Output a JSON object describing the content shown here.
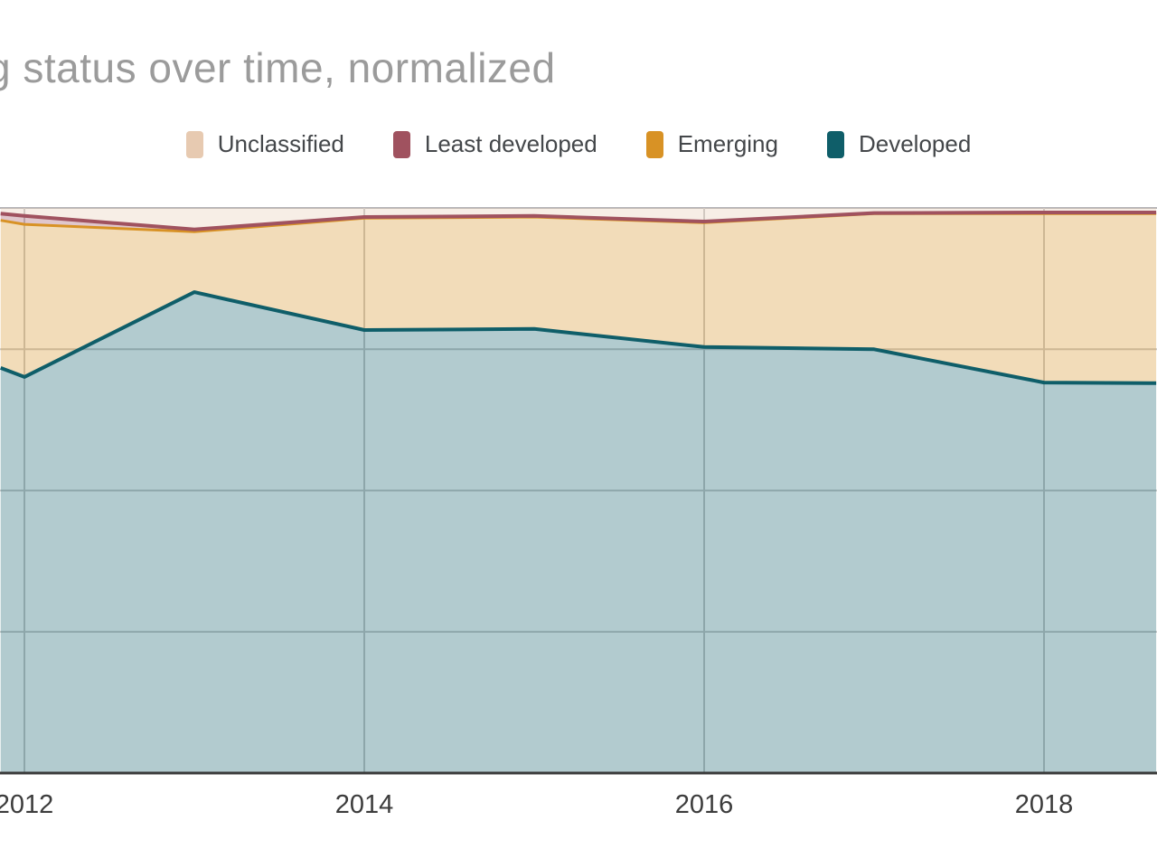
{
  "title": "g status over time, normalized",
  "legend": {
    "items": [
      {
        "label": "Unclassified",
        "color": "#e7cab1"
      },
      {
        "label": "Least developed",
        "color": "#a0525f"
      },
      {
        "label": "Emerging",
        "color": "#d89225"
      },
      {
        "label": "Developed",
        "color": "#0f5e69"
      }
    ]
  },
  "x_axis": {
    "tick_labels": [
      "2012",
      "2014",
      "2016",
      "2018"
    ],
    "tick_years": [
      2012,
      2014,
      2016,
      2018
    ]
  },
  "chart_data": {
    "type": "area",
    "stacked": true,
    "normalized": true,
    "title": "g status over time, normalized",
    "x": [
      2011.86,
      2012,
      2013,
      2014,
      2015,
      2016,
      2017,
      2018,
      2018.66
    ],
    "x_visible_range": [
      2011.86,
      2018.66
    ],
    "ylim": [
      0,
      100
    ],
    "y_gridlines_pct": [
      25,
      50,
      75,
      100
    ],
    "grid": true,
    "legend_position": "top",
    "series_order": "bottom-to-top",
    "series": [
      {
        "name": "Developed",
        "color": "#0f5e69",
        "line_width": 4,
        "values": [
          71.7,
          70.1,
          85.1,
          78.4,
          78.6,
          75.4,
          75.0,
          69.1,
          69.0
        ]
      },
      {
        "name": "Emerging",
        "color": "#d89225",
        "line_width": 3,
        "values": [
          26.1,
          27.0,
          10.7,
          19.8,
          19.8,
          22.0,
          24.0,
          29.9,
          30.0
        ]
      },
      {
        "name": "Least developed",
        "color": "#a0525f",
        "line_width": 4,
        "values": [
          1.2,
          1.5,
          0.4,
          0.2,
          0.2,
          0.2,
          0.1,
          0.2,
          0.2
        ]
      },
      {
        "name": "Unclassified",
        "color": "#e7cab1",
        "line_width": 0,
        "values": [
          1.0,
          1.4,
          3.8,
          1.6,
          1.4,
          2.4,
          0.9,
          0.8,
          0.8
        ]
      }
    ],
    "fill_opacity": 0.32,
    "gridline_color": "#c9c9c9",
    "top_border_color": "#b4b4b8",
    "axis_line_color": "#3a3a3a"
  }
}
